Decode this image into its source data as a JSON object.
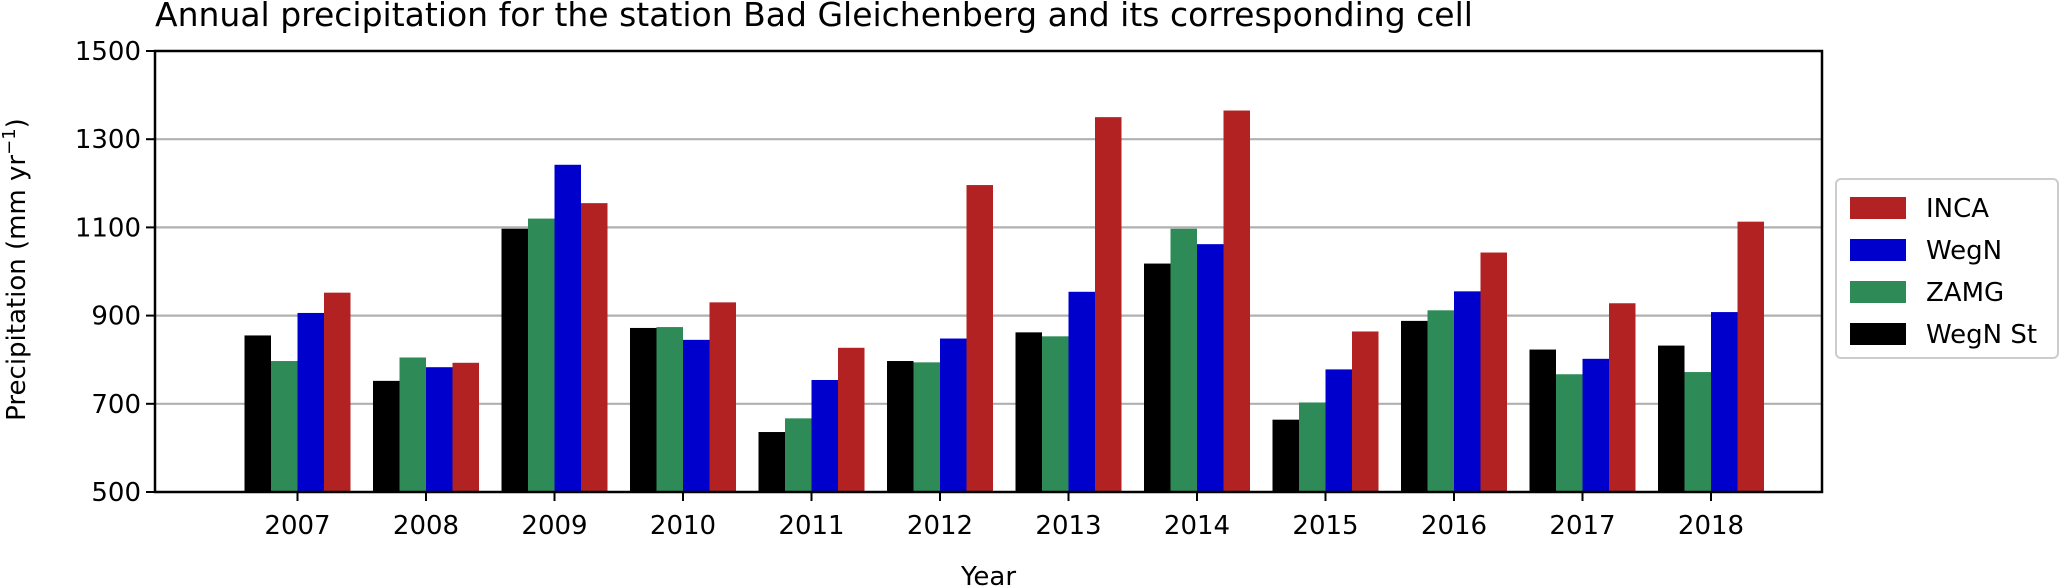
{
  "chart_data": {
    "type": "bar",
    "title": "Annual precipitation for the station Bad Gleichenberg and its corresponding cell",
    "xlabel": "Year",
    "ylabel_main": "Precipitation (mm yr",
    "ylabel_sup": "−1",
    "ylabel_close": ")",
    "categories": [
      "2007",
      "2008",
      "2009",
      "2010",
      "2011",
      "2012",
      "2013",
      "2014",
      "2015",
      "2016",
      "2017",
      "2018"
    ],
    "series": [
      {
        "name": "WegN St",
        "color": "#000000",
        "values": [
          855,
          752,
          1097,
          872,
          636,
          797,
          862,
          1018,
          664,
          888,
          823,
          832
        ]
      },
      {
        "name": "ZAMG",
        "color": "#2e8b57",
        "values": [
          797,
          805,
          1120,
          874,
          667,
          794,
          853,
          1097,
          703,
          912,
          767,
          772
        ]
      },
      {
        "name": "WegN",
        "color": "#0000cd",
        "values": [
          906,
          783,
          1242,
          845,
          754,
          848,
          954,
          1062,
          778,
          955,
          802,
          908
        ]
      },
      {
        "name": "INCA",
        "color": "#b22222",
        "values": [
          952,
          793,
          1155,
          930,
          827,
          1196,
          1350,
          1365,
          864,
          1043,
          928,
          1113
        ]
      }
    ],
    "legend_order": [
      "INCA",
      "WegN",
      "ZAMG",
      "WegN St"
    ],
    "ylim": [
      500,
      1500
    ],
    "yticks": [
      500,
      700,
      900,
      1100,
      1300,
      1500
    ],
    "grid": "horizontal",
    "legend_position": "right, outside"
  }
}
